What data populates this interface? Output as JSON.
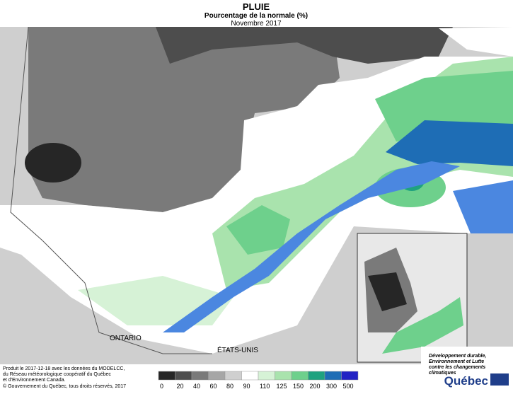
{
  "header": {
    "title": "PLUIE",
    "subtitle": "Pourcentage de la normale (%)",
    "period": "Novembre 2017"
  },
  "labels": {
    "ontario": "ONTARIO",
    "usa": "ÉTATS-UNIS"
  },
  "legend": {
    "ticks": [
      0,
      20,
      40,
      60,
      80,
      90,
      110,
      125,
      150,
      200,
      300,
      500
    ],
    "colors": [
      "#262626",
      "#4d4d4d",
      "#7a7a7a",
      "#a6a6a6",
      "#cfcfcf",
      "#ffffff",
      "#d6f2d6",
      "#a9e3ad",
      "#6ed08c",
      "#1fa27f",
      "#1e6db5",
      "#2222c4"
    ]
  },
  "footer": {
    "lines": [
      "Produit le 2017-12-18 avec les données du MODELCC,",
      "du Réseau météorologique coopératif du Québec",
      "et d'Environnement Canada."
    ],
    "copyright": "© Gouvernement du Québec, tous droits réservés, 2017"
  },
  "logo": {
    "lines": [
      "Développement durable,",
      "Environnement et Lutte",
      "contre les changements",
      "climatiques"
    ],
    "name": "Québec"
  }
}
